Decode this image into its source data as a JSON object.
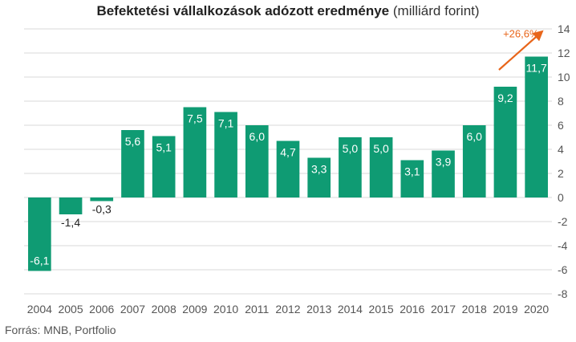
{
  "title": {
    "main": "Befektetési vállalkozások adózott eredménye",
    "unit": "(milliárd forint)"
  },
  "source": "Forrás: MNB, Portfolio",
  "colors": {
    "bar": "#0f9b73",
    "label_inside": "#ffffff",
    "label_outside": "#222222",
    "grid": "#d9d9d9",
    "annotation": "#e8651a"
  },
  "annotation": {
    "text": "+26,6%",
    "icon": "arrow-up-right-icon"
  },
  "chart_data": {
    "type": "bar",
    "categories": [
      "2004",
      "2005",
      "2006",
      "2007",
      "2008",
      "2009",
      "2010",
      "2011",
      "2012",
      "2013",
      "2014",
      "2015",
      "2016",
      "2017",
      "2018",
      "2019",
      "2020"
    ],
    "values": [
      -6.1,
      -1.4,
      -0.3,
      5.6,
      5.1,
      7.5,
      7.1,
      6.0,
      4.7,
      3.3,
      5.0,
      5.0,
      3.1,
      3.9,
      6.0,
      9.2,
      11.7
    ],
    "value_labels": [
      "-6,1",
      "-1,4",
      "-0,3",
      "5,6",
      "5,1",
      "7,5",
      "7,1",
      "6,0",
      "4,7",
      "3,3",
      "5,0",
      "5,0",
      "3,1",
      "3,9",
      "6,0",
      "9,2",
      "11,7"
    ],
    "y_ticks": [
      14,
      12,
      10,
      8,
      6,
      4,
      2,
      0,
      -2,
      -4,
      -6,
      -8
    ],
    "y_tick_labels": [
      "14",
      "12",
      "10",
      "8",
      "6",
      "4",
      "2",
      "0",
      "-2",
      "-4",
      "-6",
      "-8"
    ],
    "ylim": [
      -8,
      14
    ],
    "y_axis_side": "right",
    "grid": true,
    "xlabel": "",
    "ylabel": ""
  }
}
